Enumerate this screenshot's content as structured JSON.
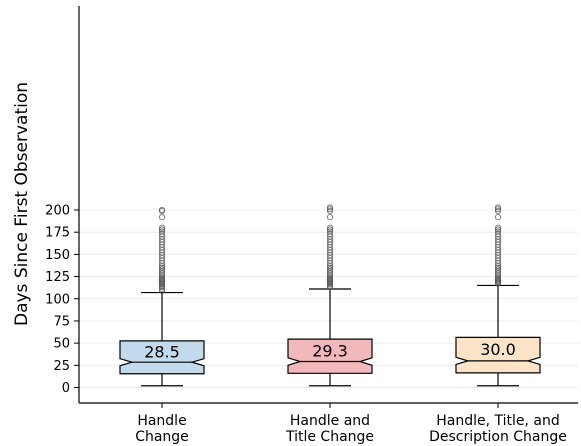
{
  "chart_data": {
    "type": "box",
    "title": "",
    "xlabel": "",
    "ylabel": "Days Since First Observation",
    "ylim": [
      -8,
      214
    ],
    "yticks": [
      0,
      25,
      50,
      75,
      100,
      125,
      150,
      175,
      200
    ],
    "grid": "horizontal",
    "categories": [
      [
        "Handle",
        "Change"
      ],
      [
        "Handle and",
        "Title Change"
      ],
      [
        "Handle, Title, and",
        "Description Change"
      ]
    ],
    "boxes": [
      {
        "median": 28.5,
        "median_label": "28.5",
        "q1": 15.5,
        "q3": 52.5,
        "whisker_low": 2,
        "whisker_high": 107,
        "notch_low": 24.5,
        "notch_high": 32.5,
        "fill": "#c3d9ec",
        "outliers": [
          109,
          111,
          113,
          114,
          116,
          117,
          118,
          119,
          120,
          121,
          122,
          123,
          125,
          127,
          129,
          131,
          133,
          135,
          137,
          140,
          143,
          146,
          149,
          152,
          155,
          158,
          161,
          164,
          167,
          170,
          173,
          176,
          178,
          180,
          192,
          199,
          200
        ]
      },
      {
        "median": 29.3,
        "median_label": "29.3",
        "q1": 16,
        "q3": 54.5,
        "whisker_low": 2,
        "whisker_high": 111,
        "notch_low": 25,
        "notch_high": 33.5,
        "fill": "#f2b9bc",
        "outliers": [
          113,
          114,
          116,
          117,
          118,
          119,
          120,
          121,
          122,
          123,
          125,
          127,
          129,
          131,
          133,
          135,
          137,
          140,
          143,
          146,
          149,
          152,
          155,
          158,
          161,
          164,
          167,
          170,
          173,
          176,
          178,
          180,
          192,
          199,
          201,
          203
        ]
      },
      {
        "median": 30.0,
        "median_label": "30.0",
        "q1": 16.5,
        "q3": 56.5,
        "whisker_low": 2,
        "whisker_high": 115,
        "notch_low": 26,
        "notch_high": 34,
        "fill": "#fde4c8",
        "outliers": [
          117,
          118,
          119,
          120,
          121,
          122,
          123,
          125,
          127,
          129,
          131,
          133,
          135,
          137,
          140,
          143,
          146,
          149,
          152,
          155,
          158,
          161,
          164,
          167,
          170,
          173,
          176,
          178,
          180,
          192,
          199,
          201,
          203
        ]
      }
    ]
  }
}
